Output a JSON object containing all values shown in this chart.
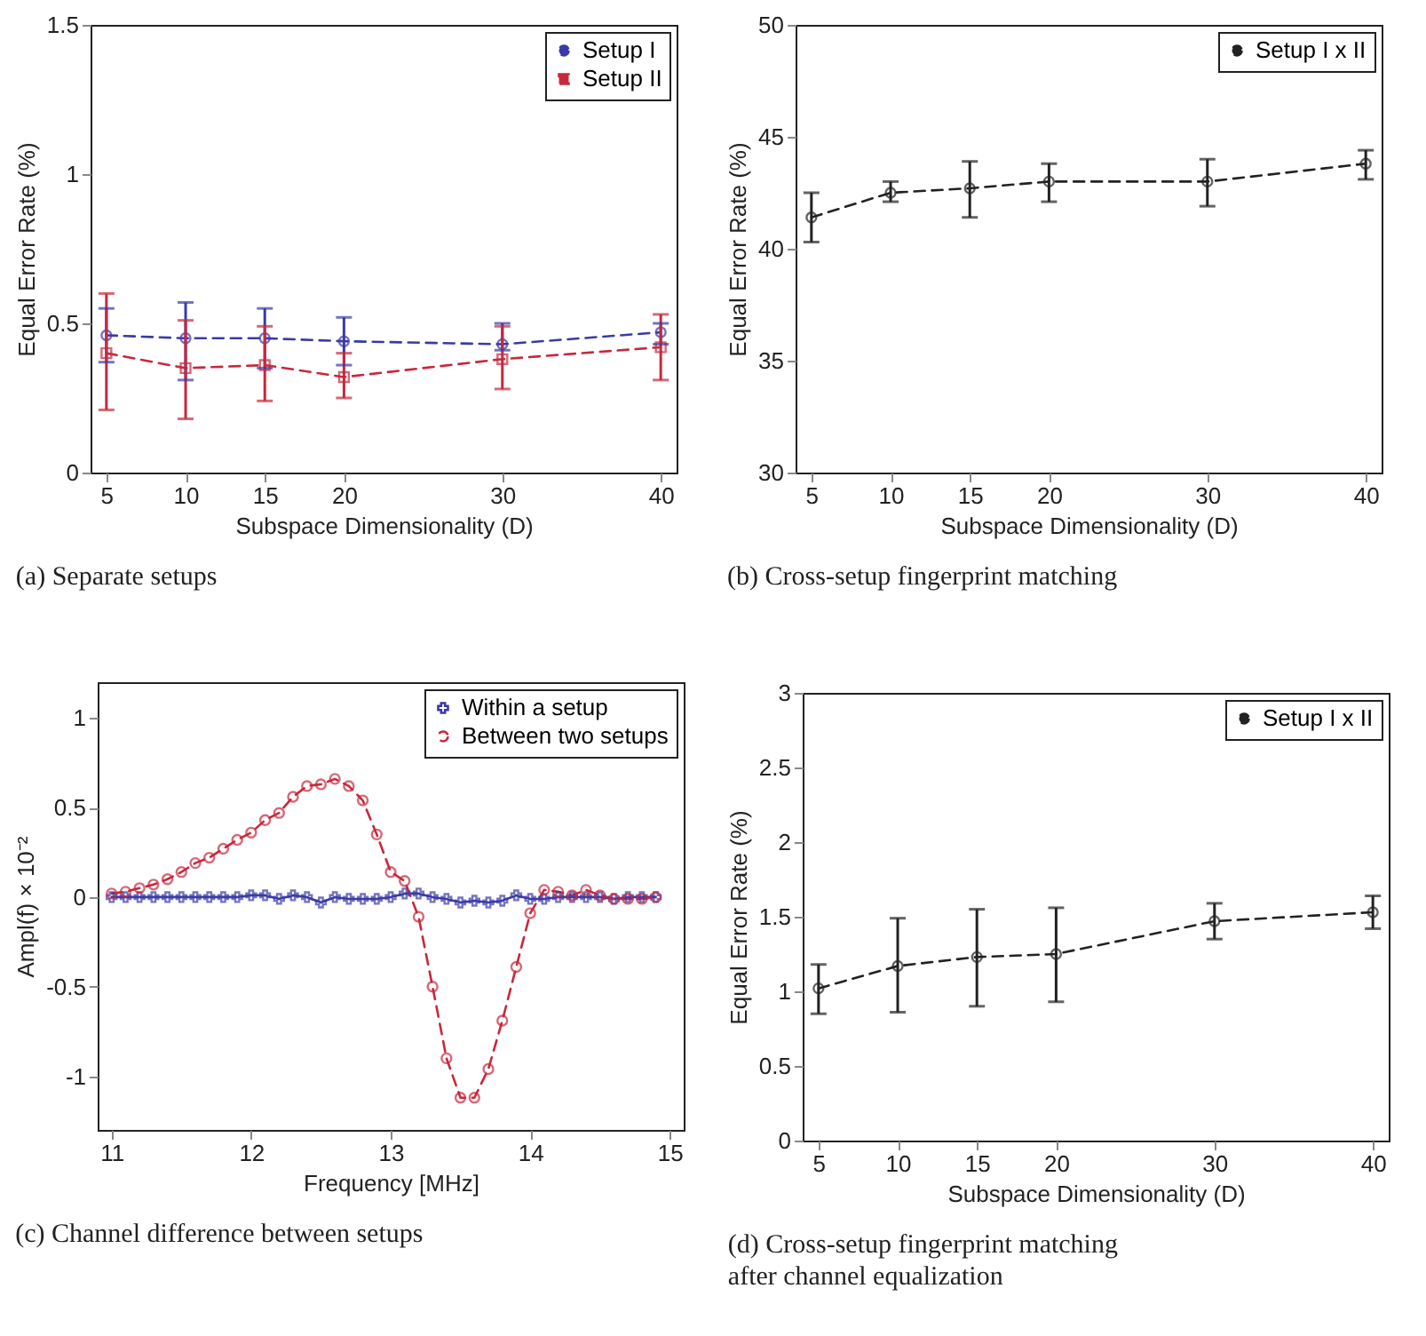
{
  "chart_data": [
    {
      "type": "line",
      "title": "(a)  Separate setups",
      "xlabel": "Subspace Dimensionality (D)",
      "ylabel": "Equal Error Rate (%)",
      "x": [
        5,
        10,
        15,
        20,
        30,
        40
      ],
      "xlim": [
        4,
        41
      ],
      "xticks": [
        5,
        10,
        15,
        20,
        30,
        40
      ],
      "ylim": [
        0,
        1.5
      ],
      "yticks": [
        0,
        0.5,
        1,
        1.5
      ],
      "legend": "top right",
      "series": [
        {
          "name": "Setup I",
          "color": "#3a3aa8",
          "marker": "circle",
          "line_style": "dashed",
          "values": [
            0.46,
            0.45,
            0.45,
            0.44,
            0.43,
            0.47
          ],
          "errors": [
            [
              0.37,
              0.55
            ],
            [
              0.31,
              0.57
            ],
            [
              0.35,
              0.55
            ],
            [
              0.36,
              0.52
            ],
            [
              0.41,
              0.5
            ],
            [
              0.43,
              0.5
            ]
          ]
        },
        {
          "name": "Setup II",
          "color": "#c8283c",
          "marker": "square",
          "line_style": "dashed",
          "values": [
            0.4,
            0.35,
            0.36,
            0.32,
            0.38,
            0.42
          ],
          "errors": [
            [
              0.21,
              0.6
            ],
            [
              0.18,
              0.51
            ],
            [
              0.24,
              0.49
            ],
            [
              0.25,
              0.4
            ],
            [
              0.28,
              0.49
            ],
            [
              0.31,
              0.53
            ]
          ]
        }
      ]
    },
    {
      "type": "line",
      "title": "(b)  Cross-setup fingerprint matching",
      "xlabel": "Subspace Dimensionality (D)",
      "ylabel": "Equal Error Rate (%)",
      "x": [
        5,
        10,
        15,
        20,
        30,
        40
      ],
      "xlim": [
        4,
        41
      ],
      "xticks": [
        5,
        10,
        15,
        20,
        30,
        40
      ],
      "ylim": [
        30,
        50
      ],
      "yticks": [
        30,
        35,
        40,
        45,
        50
      ],
      "legend": "top right",
      "series": [
        {
          "name": "Setup I x II",
          "color": "#222222",
          "marker": "circle",
          "line_style": "dashed",
          "values": [
            41.4,
            42.5,
            42.7,
            43,
            43,
            43.8
          ],
          "errors": [
            [
              40.3,
              42.5
            ],
            [
              42.1,
              43
            ],
            [
              41.4,
              43.9
            ],
            [
              42.1,
              43.8
            ],
            [
              41.9,
              44
            ],
            [
              43.1,
              44.4
            ]
          ]
        }
      ]
    },
    {
      "type": "line",
      "title": "(c)  Channel difference between setups",
      "xlabel": "Frequency [MHz]",
      "ylabel": "Ampl(f) × 10⁻²",
      "x": [
        11,
        11.1,
        11.2,
        11.3,
        11.4,
        11.5,
        11.6,
        11.7,
        11.8,
        11.9,
        12,
        12.1,
        12.2,
        12.3,
        12.4,
        12.5,
        12.6,
        12.7,
        12.8,
        12.9,
        13,
        13.1,
        13.2,
        13.3,
        13.4,
        13.5,
        13.6,
        13.7,
        13.8,
        13.9,
        14,
        14.1,
        14.2,
        14.3,
        14.4,
        14.5,
        14.6,
        14.7,
        14.8,
        14.9
      ],
      "xlim": [
        10.9,
        15.1
      ],
      "xticks": [
        11,
        12,
        13,
        14,
        15
      ],
      "ylim": [
        -1.3,
        1.2
      ],
      "yticks": [
        -1,
        -0.5,
        0,
        0.5,
        1
      ],
      "legend": "top right",
      "series": [
        {
          "name": "Within a setup",
          "color": "#3a3aa8",
          "marker": "cross",
          "line_style": "solid",
          "values": [
            0,
            0,
            0,
            0,
            0,
            0,
            0,
            0,
            0,
            0,
            0.01,
            0.01,
            -0.01,
            0.01,
            0,
            -0.03,
            0,
            -0.01,
            -0.01,
            -0.01,
            0,
            0.02,
            0.02,
            0,
            -0.01,
            -0.03,
            -0.02,
            -0.03,
            -0.02,
            0.01,
            -0.01,
            -0.01,
            0,
            0,
            0,
            0,
            -0.01,
            0,
            0,
            0
          ]
        },
        {
          "name": "Between two setups",
          "color": "#c8283c",
          "marker": "circle",
          "line_style": "dashed",
          "values": [
            0.02,
            0.03,
            0.05,
            0.07,
            0.1,
            0.14,
            0.19,
            0.22,
            0.27,
            0.32,
            0.36,
            0.43,
            0.47,
            0.56,
            0.62,
            0.63,
            0.66,
            0.62,
            0.54,
            0.35,
            0.14,
            0.09,
            -0.11,
            -0.5,
            -0.9,
            -1.12,
            -1.12,
            -0.96,
            -0.69,
            -0.39,
            -0.09,
            0.04,
            0.03,
            0.01,
            0.04,
            0.01,
            -0.01,
            -0.01,
            -0.01,
            0
          ]
        }
      ]
    },
    {
      "type": "line",
      "title": "(d)  Cross-setup fingerprint matching after channel equalization",
      "xlabel": "Subspace Dimensionality (D)",
      "ylabel": "Equal Error Rate (%)",
      "x": [
        5,
        10,
        15,
        20,
        30,
        40
      ],
      "xlim": [
        4,
        41
      ],
      "xticks": [
        5,
        10,
        15,
        20,
        30,
        40
      ],
      "ylim": [
        0,
        3
      ],
      "yticks": [
        0,
        0.5,
        1,
        1.5,
        2,
        2.5,
        3
      ],
      "legend": "top right",
      "series": [
        {
          "name": "Setup I x II",
          "color": "#222222",
          "marker": "circle",
          "line_style": "dashed",
          "values": [
            1.02,
            1.17,
            1.23,
            1.25,
            1.47,
            1.53
          ],
          "errors": [
            [
              0.85,
              1.18
            ],
            [
              0.86,
              1.49
            ],
            [
              0.9,
              1.55
            ],
            [
              0.93,
              1.56
            ],
            [
              1.35,
              1.59
            ],
            [
              1.42,
              1.64
            ]
          ]
        }
      ]
    }
  ]
}
